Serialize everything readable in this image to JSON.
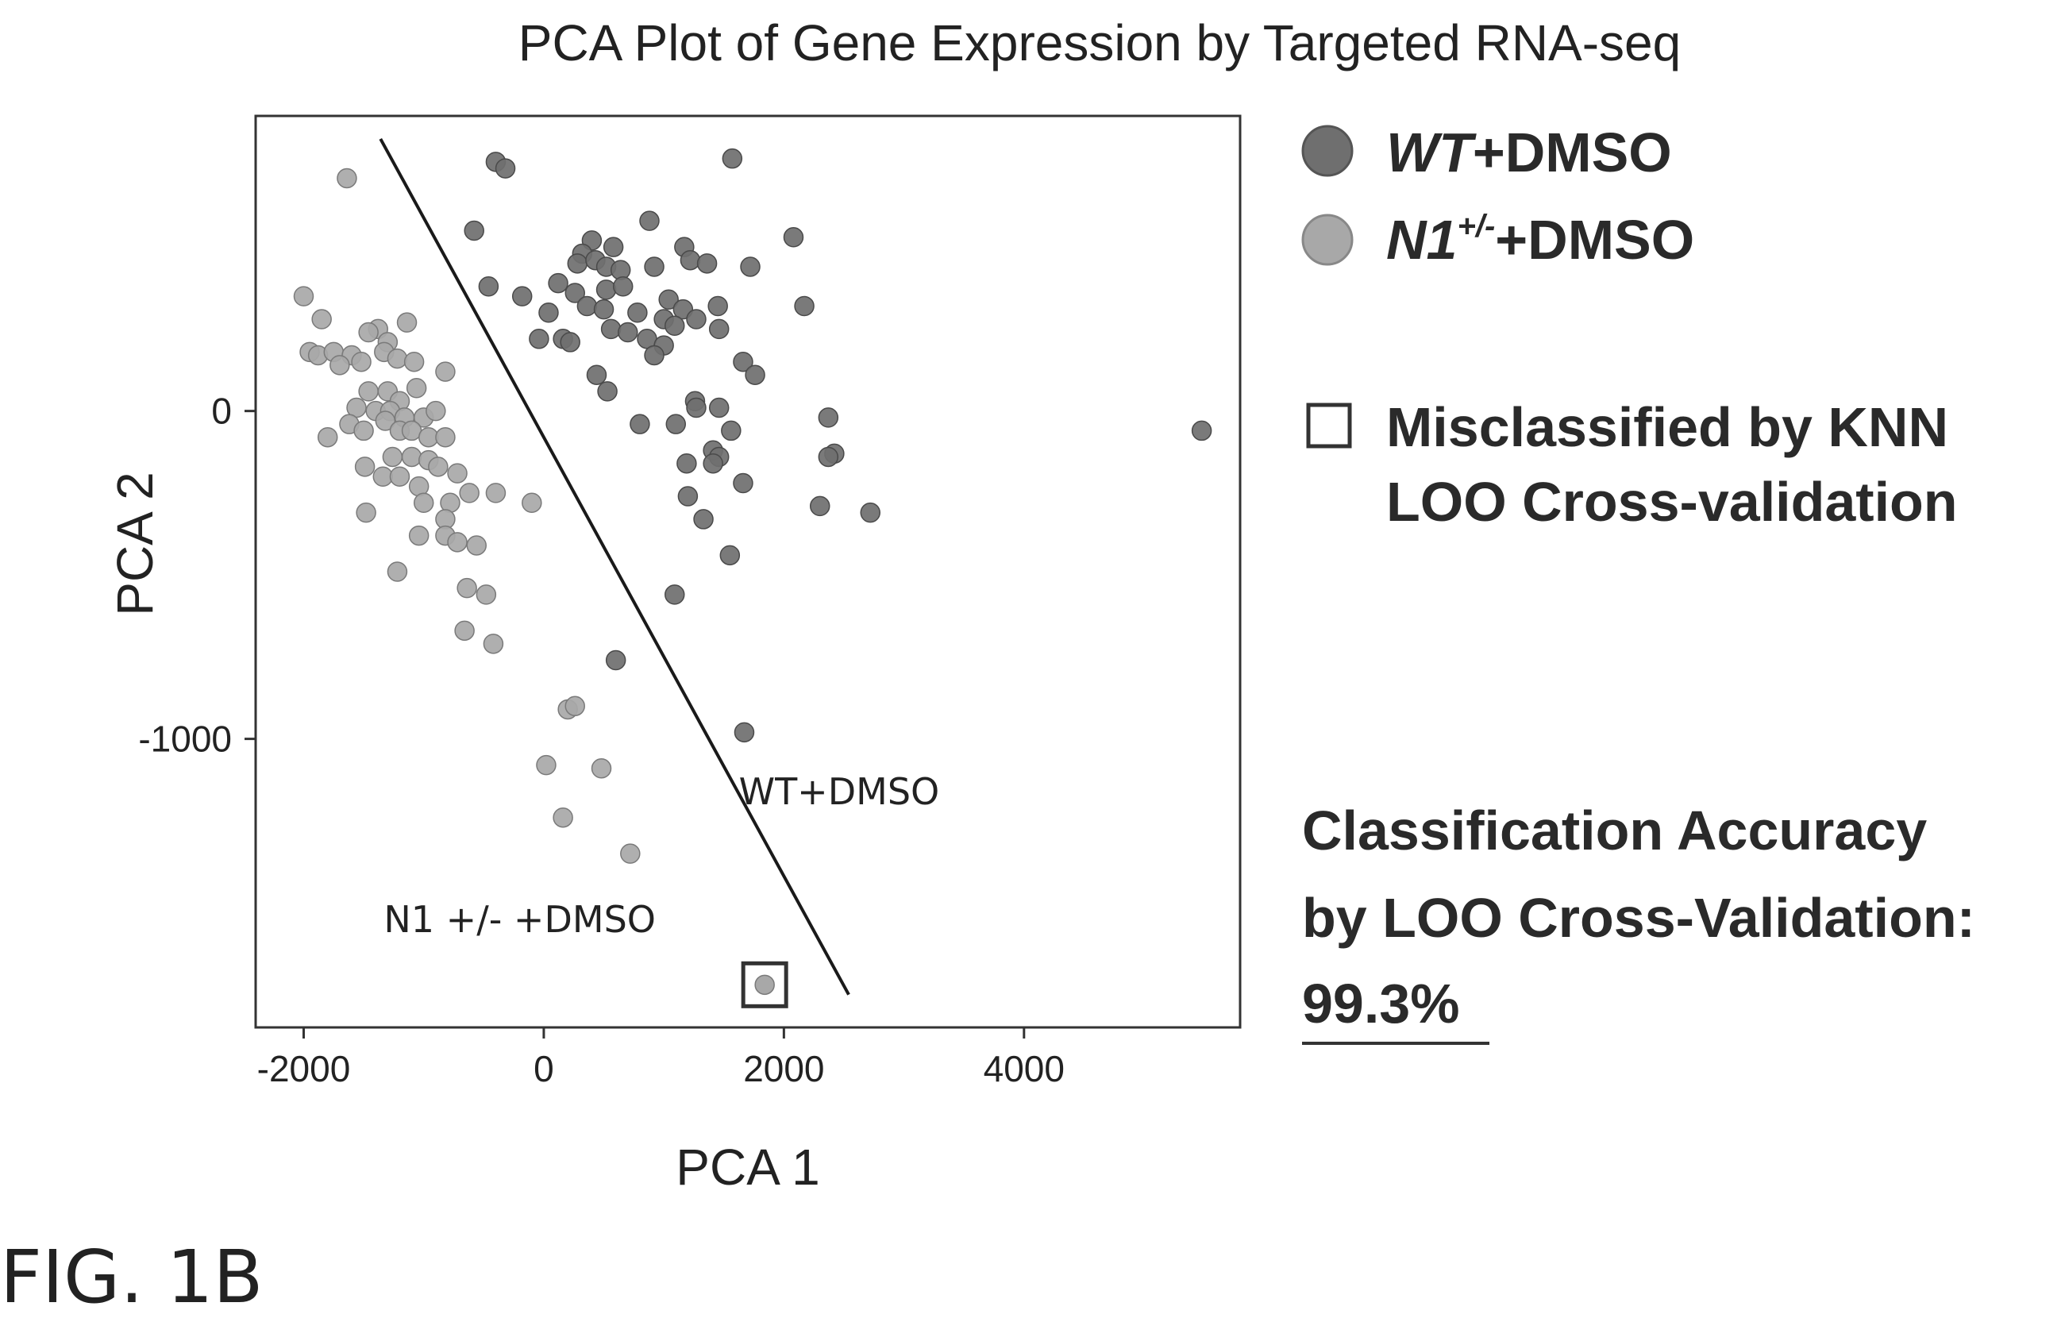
{
  "chart_data": {
    "type": "scatter",
    "title": "PCA Plot of Gene Expression by Targeted RNA-seq",
    "xlabel": "PCA 1",
    "ylabel": "PCA 2",
    "xlim": [
      -2400,
      5800
    ],
    "ylim": [
      -1880,
      900
    ],
    "xticks": [
      {
        "value": -2000,
        "label": "-2000"
      },
      {
        "value": 0,
        "label": "0"
      },
      {
        "value": 2000,
        "label": "2000"
      },
      {
        "value": 4000,
        "label": "4000"
      }
    ],
    "yticks": [
      {
        "value": 0,
        "label": "0"
      },
      {
        "value": -1000,
        "label": "-1000"
      }
    ],
    "grid": false,
    "legend_position": "right",
    "series": [
      {
        "name": "WT+DMSO",
        "color": "#6f6f6f",
        "points": [
          [
            -400,
            760
          ],
          [
            -320,
            740
          ],
          [
            1570,
            770
          ],
          [
            -580,
            550
          ],
          [
            2080,
            530
          ],
          [
            880,
            580
          ],
          [
            400,
            520
          ],
          [
            320,
            480
          ],
          [
            580,
            500
          ],
          [
            1170,
            500
          ],
          [
            1220,
            460
          ],
          [
            280,
            450
          ],
          [
            430,
            460
          ],
          [
            520,
            440
          ],
          [
            640,
            430
          ],
          [
            1720,
            440
          ],
          [
            920,
            440
          ],
          [
            1360,
            450
          ],
          [
            -460,
            380
          ],
          [
            -180,
            350
          ],
          [
            120,
            390
          ],
          [
            260,
            360
          ],
          [
            520,
            370
          ],
          [
            660,
            380
          ],
          [
            1040,
            340
          ],
          [
            1160,
            310
          ],
          [
            360,
            320
          ],
          [
            500,
            310
          ],
          [
            780,
            300
          ],
          [
            1000,
            280
          ],
          [
            1450,
            320
          ],
          [
            2170,
            320
          ],
          [
            40,
            300
          ],
          [
            1270,
            280
          ],
          [
            1460,
            250
          ],
          [
            -40,
            220
          ],
          [
            160,
            220
          ],
          [
            220,
            210
          ],
          [
            560,
            250
          ],
          [
            700,
            240
          ],
          [
            860,
            220
          ],
          [
            1090,
            260
          ],
          [
            1000,
            200
          ],
          [
            920,
            170
          ],
          [
            1660,
            150
          ],
          [
            1760,
            110
          ],
          [
            440,
            110
          ],
          [
            530,
            60
          ],
          [
            1260,
            30
          ],
          [
            1270,
            10
          ],
          [
            1460,
            10
          ],
          [
            2370,
            -20
          ],
          [
            800,
            -40
          ],
          [
            1100,
            -40
          ],
          [
            1560,
            -60
          ],
          [
            1410,
            -120
          ],
          [
            1460,
            -140
          ],
          [
            2420,
            -130
          ],
          [
            2370,
            -140
          ],
          [
            1410,
            -160
          ],
          [
            1190,
            -160
          ],
          [
            1660,
            -220
          ],
          [
            1200,
            -260
          ],
          [
            2300,
            -290
          ],
          [
            2720,
            -310
          ],
          [
            1330,
            -330
          ],
          [
            1550,
            -440
          ],
          [
            5480,
            -60
          ],
          [
            1090,
            -560
          ],
          [
            1670,
            -980
          ],
          [
            600,
            -760
          ]
        ]
      },
      {
        "name": "N1+/-+DMSO",
        "color": "#a8a8a8",
        "points": [
          [
            -1640,
            710
          ],
          [
            -2000,
            350
          ],
          [
            -1850,
            280
          ],
          [
            -1950,
            180
          ],
          [
            -1880,
            170
          ],
          [
            -1750,
            180
          ],
          [
            -1600,
            170
          ],
          [
            -1380,
            250
          ],
          [
            -1140,
            270
          ],
          [
            -1460,
            240
          ],
          [
            -1300,
            210
          ],
          [
            -1700,
            140
          ],
          [
            -1520,
            150
          ],
          [
            -1330,
            180
          ],
          [
            -1220,
            160
          ],
          [
            -1080,
            150
          ],
          [
            -1460,
            60
          ],
          [
            -1300,
            60
          ],
          [
            -1200,
            30
          ],
          [
            -1060,
            70
          ],
          [
            -820,
            120
          ],
          [
            -1560,
            10
          ],
          [
            -1400,
            0
          ],
          [
            -1280,
            0
          ],
          [
            -1160,
            -20
          ],
          [
            -1000,
            -20
          ],
          [
            -900,
            0
          ],
          [
            -1620,
            -40
          ],
          [
            -1500,
            -60
          ],
          [
            -1320,
            -30
          ],
          [
            -1200,
            -60
          ],
          [
            -1100,
            -60
          ],
          [
            -960,
            -80
          ],
          [
            -820,
            -80
          ],
          [
            -1800,
            -80
          ],
          [
            -1260,
            -140
          ],
          [
            -1100,
            -140
          ],
          [
            -960,
            -150
          ],
          [
            -1490,
            -170
          ],
          [
            -1340,
            -200
          ],
          [
            -1200,
            -200
          ],
          [
            -1040,
            -230
          ],
          [
            -880,
            -170
          ],
          [
            -720,
            -190
          ],
          [
            -1000,
            -280
          ],
          [
            -780,
            -280
          ],
          [
            -620,
            -250
          ],
          [
            -400,
            -250
          ],
          [
            -100,
            -280
          ],
          [
            -1480,
            -310
          ],
          [
            -820,
            -330
          ],
          [
            -820,
            -380
          ],
          [
            -1040,
            -380
          ],
          [
            -720,
            -400
          ],
          [
            -560,
            -410
          ],
          [
            -1220,
            -490
          ],
          [
            -640,
            -540
          ],
          [
            -480,
            -560
          ],
          [
            -660,
            -670
          ],
          [
            -420,
            -710
          ],
          [
            200,
            -910
          ],
          [
            260,
            -900
          ],
          [
            20,
            -1080
          ],
          [
            480,
            -1090
          ],
          [
            160,
            -1240
          ],
          [
            720,
            -1350
          ]
        ]
      }
    ],
    "misclassified": [
      [
        1840,
        -1750
      ]
    ],
    "decision_boundary": [
      [
        -1360,
        830
      ],
      [
        2540,
        -1780
      ]
    ],
    "annotations": [
      {
        "text": "WT+DMSO",
        "x": 2460,
        "y": -1200
      },
      {
        "text": "N1 +/- +DMSO",
        "x": -200,
        "y": -1590
      }
    ]
  },
  "legend": {
    "items": [
      {
        "italic": "WT",
        "rest": "+DMSO",
        "sup": "",
        "color": "#6f6f6f"
      },
      {
        "italic": "N1",
        "sup": "+/-",
        "rest": "+DMSO",
        "color": "#a8a8a8"
      }
    ],
    "misclassified_line1": "Misclassified by KNN",
    "misclassified_line2": "LOO Cross-validation"
  },
  "accuracy": {
    "line1": "Classification Accuracy",
    "line2": "by LOO Cross-Validation:",
    "value": "99.3%"
  },
  "figure_label": "FIG. 1B"
}
